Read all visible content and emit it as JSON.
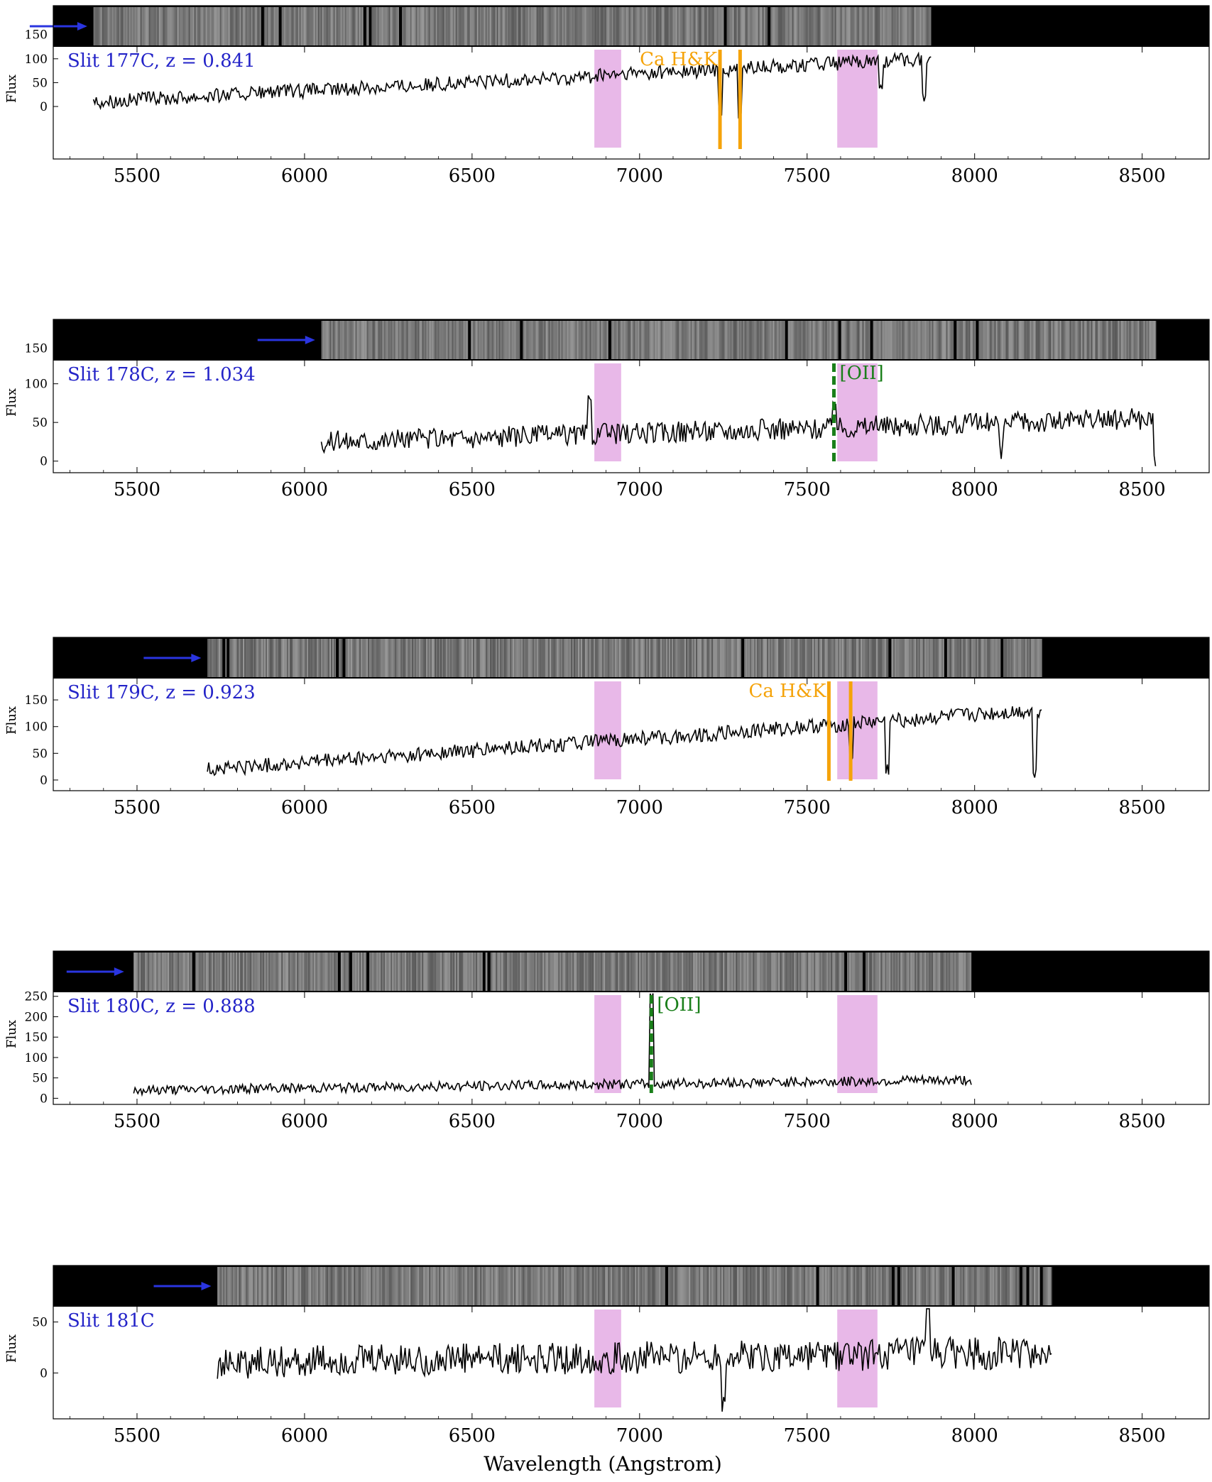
{
  "figure": {
    "xlabel": "Wavelength (Angstrom)",
    "xticks": [
      5500,
      6000,
      6500,
      7000,
      7500,
      8000,
      8500
    ],
    "xlim": [
      5250,
      8700
    ]
  },
  "chart_data": [
    {
      "type": "line",
      "label": "Slit 177C, z = 0.841",
      "slit": "Slit 177C",
      "z": "z = 0.841",
      "ylabel": "Flux",
      "ylim": [
        -110,
        125
      ],
      "yticks": [
        0,
        50,
        100
      ],
      "stamp_yticks": [
        150
      ],
      "x_range": [
        5370,
        7870
      ],
      "baseline_start": 10,
      "baseline_end": 100,
      "noise": 15,
      "features": [
        [
          7240,
          -100
        ],
        [
          7300,
          -100
        ],
        [
          7720,
          -55
        ],
        [
          7850,
          -80
        ]
      ],
      "line_marker": {
        "text": "Ca H&K",
        "color": "#f5a30a",
        "x": [
          7240,
          7300
        ],
        "style": "solid"
      },
      "arrow_x": 5360,
      "telluric_bands": [
        [
          6865,
          6945
        ],
        [
          7590,
          7710
        ]
      ],
      "seed": 177
    },
    {
      "type": "line",
      "label": "Slit 178C, z = 1.034",
      "slit": "Slit 178C",
      "z": "z = 1.034",
      "ylabel": "Flux",
      "ylim": [
        -15,
        130
      ],
      "yticks": [
        0,
        50,
        100
      ],
      "stamp_yticks": [
        150
      ],
      "x_range": [
        6050,
        8540
      ],
      "baseline_start": 25,
      "baseline_end": 55,
      "noise": 14,
      "features": [
        [
          6850,
          40
        ],
        [
          7580,
          40
        ],
        [
          8080,
          -40
        ],
        [
          8540,
          -50
        ]
      ],
      "line_marker": {
        "text": "[OII]",
        "color": "#1a7f1a",
        "x": [
          7580
        ],
        "style": "dashed"
      },
      "arrow_x": 6040,
      "telluric_bands": [
        [
          6865,
          6945
        ],
        [
          7590,
          7710
        ]
      ],
      "seed": 178
    },
    {
      "type": "line",
      "label": "Slit 179C, z = 0.923",
      "slit": "Slit 179C",
      "z": "z = 0.923",
      "ylabel": "Flux",
      "ylim": [
        -20,
        190
      ],
      "yticks": [
        0,
        50,
        100,
        150
      ],
      "stamp_yticks": [],
      "x_range": [
        5710,
        8200
      ],
      "baseline_start": 20,
      "baseline_end": 130,
      "noise": 14,
      "features": [
        [
          7630,
          -60
        ],
        [
          7740,
          -90
        ],
        [
          8180,
          -120
        ]
      ],
      "line_marker": {
        "text": "Ca H&K",
        "color": "#f5a30a",
        "x": [
          7565,
          7630
        ],
        "style": "solid"
      },
      "arrow_x": 5700,
      "telluric_bands": [
        [
          6865,
          6945
        ],
        [
          7590,
          7710
        ]
      ],
      "seed": 179
    },
    {
      "type": "line",
      "label": "Slit 180C, z = 0.888",
      "slit": "Slit 180C",
      "z": "z = 0.888",
      "ylabel": "Flux",
      "ylim": [
        -15,
        260
      ],
      "yticks": [
        0,
        50,
        100,
        150,
        200,
        250
      ],
      "stamp_yticks": [],
      "x_range": [
        5490,
        7990
      ],
      "baseline_start": 20,
      "baseline_end": 45,
      "noise": 12,
      "features": [
        [
          7035,
          215
        ]
      ],
      "line_marker": {
        "text": "[OII]",
        "color": "#1a7f1a",
        "x": [
          7035
        ],
        "style": "dashed"
      },
      "arrow_x": 5470,
      "telluric_bands": [
        [
          6865,
          6945
        ],
        [
          7590,
          7710
        ]
      ],
      "seed": 180
    },
    {
      "type": "line",
      "label": "Slit 181C",
      "slit": "Slit 181C",
      "z": "",
      "ylabel": "Flux",
      "ylim": [
        -45,
        65
      ],
      "yticks": [
        0,
        50
      ],
      "stamp_yticks": [],
      "x_range": [
        5740,
        8230
      ],
      "baseline_start": 10,
      "baseline_end": 20,
      "noise": 16,
      "features": [
        [
          7250,
          -40
        ],
        [
          7860,
          45
        ]
      ],
      "line_marker": null,
      "arrow_x": 5730,
      "telluric_bands": [
        [
          6865,
          6945
        ],
        [
          7590,
          7710
        ]
      ],
      "seed": 181
    }
  ],
  "colors": {
    "spectrum": "#000000",
    "band": "#e8b8e8",
    "slit_label": "#2323c8",
    "arrow": "#2a35e0"
  }
}
